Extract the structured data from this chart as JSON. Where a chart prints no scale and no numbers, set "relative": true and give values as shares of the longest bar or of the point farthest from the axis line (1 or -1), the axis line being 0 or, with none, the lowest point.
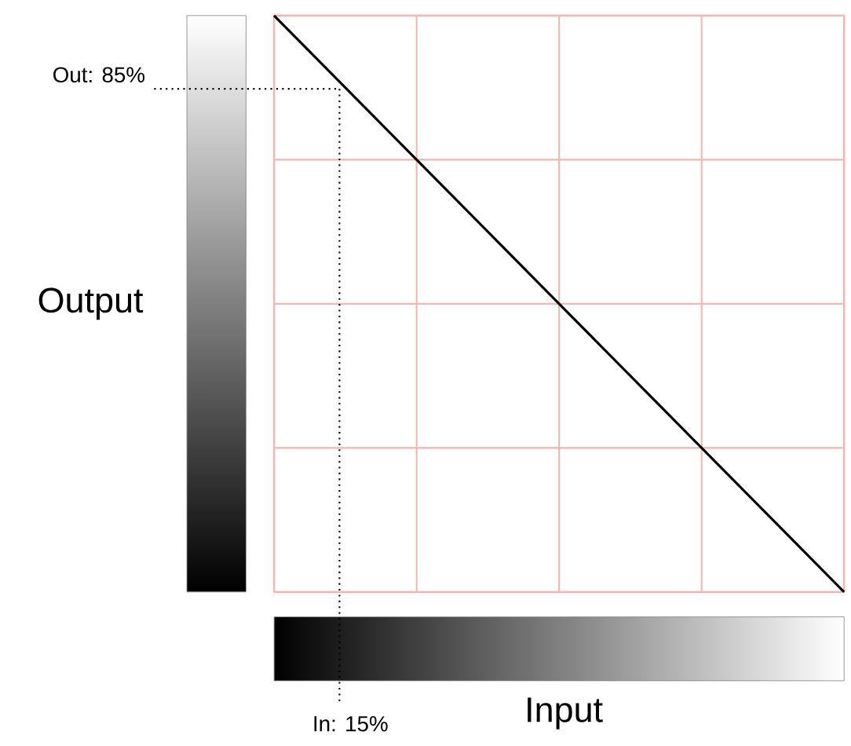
{
  "chart_data": {
    "type": "line",
    "xlabel": "Input",
    "ylabel": "Output",
    "categories": [
      null,
      null,
      null,
      null,
      null
    ],
    "values": [
      1,
      0.75,
      0.5,
      0.25,
      0
    ],
    "color": "#000000",
    "relative": true,
    "grid": true,
    "marker": "none",
    "line_style": "solid",
    "annotations": [
      "Out: 85%",
      "In: 15%"
    ]
  }
}
